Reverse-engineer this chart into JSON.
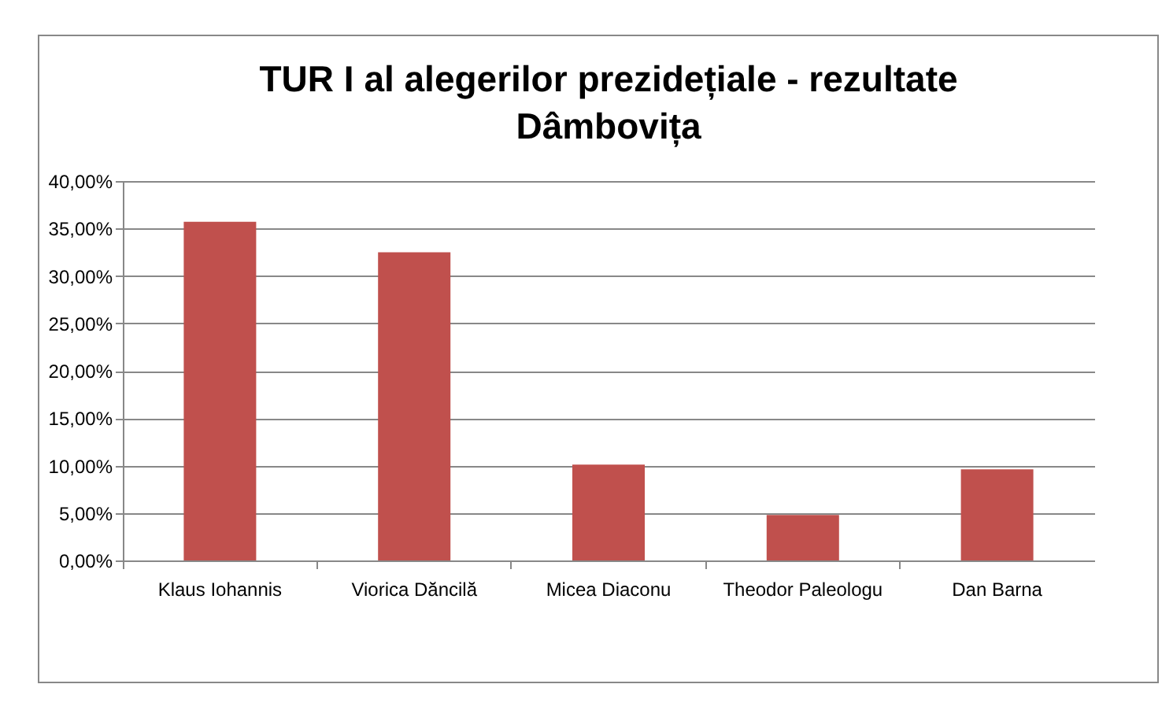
{
  "chart_data": {
    "type": "bar",
    "title": "TUR I al alegerilor prezidețiale - rezultate Dâmbovița",
    "categories": [
      "Klaus Iohannis",
      "Viorica Dăncilă",
      "Micea Diaconu",
      "Theodor Paleologu",
      "Dan Barna"
    ],
    "values": [
      35.7,
      32.5,
      10.1,
      4.8,
      9.6
    ],
    "color": "#c0504d",
    "ylim": [
      0,
      40
    ],
    "yticks": [
      {
        "value": 0,
        "label": "0,00%"
      },
      {
        "value": 5,
        "label": "5,00%"
      },
      {
        "value": 10,
        "label": "10,00%"
      },
      {
        "value": 15,
        "label": "15,00%"
      },
      {
        "value": 20,
        "label": "20,00%"
      },
      {
        "value": 25,
        "label": "25,00%"
      },
      {
        "value": 30,
        "label": "30,00%"
      },
      {
        "value": 35,
        "label": "35,00%"
      },
      {
        "value": 40,
        "label": "40,00%"
      }
    ],
    "grid": "y"
  }
}
